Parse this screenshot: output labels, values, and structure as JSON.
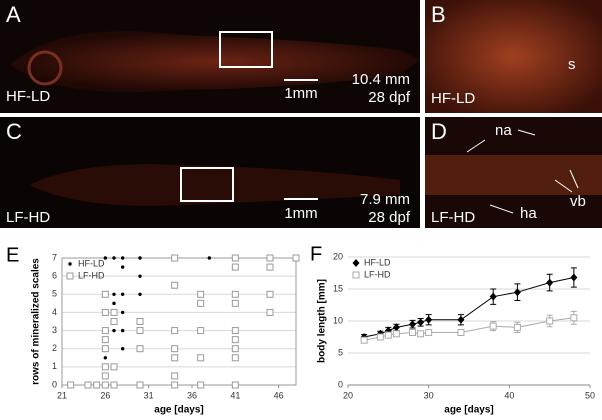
{
  "panels": [
    {
      "label": "A",
      "group": "HF-LD",
      "scale": "1mm",
      "size": "10.4 mm",
      "age": "28 dpf"
    },
    {
      "label": "B",
      "group": "HF-LD",
      "marks": [
        "s"
      ]
    },
    {
      "label": "C",
      "group": "LF-HD",
      "scale": "1mm",
      "size": "7.9 mm",
      "age": "28 dpf"
    },
    {
      "label": "D",
      "group": "LF-HD",
      "marks": [
        "na",
        "vb",
        "ha"
      ]
    }
  ],
  "chart_data": [
    {
      "type": "scatter",
      "panel_label": "E",
      "xlabel": "age [days]",
      "ylabel": "rows of mineralized scales",
      "xlim": [
        21,
        48
      ],
      "xticks": [
        21,
        26,
        31,
        36,
        41,
        46
      ],
      "ylim": [
        0,
        7
      ],
      "yticks": [
        0,
        1,
        2,
        3,
        4,
        5,
        6,
        7
      ],
      "grid": true,
      "legend": "top-left",
      "series": [
        {
          "name": "HF-LD",
          "color": "#000000",
          "marker": "dot",
          "x": [
            22,
            24,
            25,
            26,
            26,
            26,
            26,
            26,
            26,
            27,
            27,
            27,
            27,
            27,
            28,
            28,
            28,
            28,
            28,
            28,
            30,
            30,
            30,
            30,
            34,
            38,
            41,
            45,
            48
          ],
          "values": [
            0,
            0,
            0,
            7,
            4,
            3,
            2.5,
            1.5,
            1,
            7,
            5,
            4.5,
            4,
            3,
            7,
            6.5,
            5,
            4,
            3,
            2,
            7,
            6,
            5,
            3,
            7,
            7,
            7,
            7,
            7
          ]
        },
        {
          "name": "LF-HD",
          "color": "#999999",
          "marker": "square",
          "x": [
            22,
            24,
            25,
            26,
            26,
            26,
            26,
            26,
            26,
            26,
            26,
            27,
            27,
            27,
            27,
            30,
            30,
            30,
            30,
            34,
            34,
            34,
            34,
            34,
            34,
            34,
            37,
            37,
            37,
            37,
            37,
            41,
            41,
            41,
            41,
            41,
            41,
            41,
            41,
            41,
            45,
            45,
            45,
            45,
            48
          ],
          "values": [
            0,
            0,
            0,
            5,
            4,
            3,
            2.5,
            2,
            1,
            0.5,
            0,
            4,
            3.5,
            1,
            0,
            3.5,
            3,
            2,
            0,
            7,
            5.5,
            3,
            2,
            1.5,
            0.5,
            0,
            5,
            4.5,
            3,
            1.5,
            0,
            7,
            6.5,
            5,
            4.5,
            3,
            2.5,
            2,
            1.5,
            0,
            7,
            6.5,
            5,
            4,
            7
          ]
        }
      ]
    },
    {
      "type": "line",
      "panel_label": "F",
      "xlabel": "age [days]",
      "ylabel": "body length [mm]",
      "xlim": [
        20,
        50
      ],
      "xticks": [
        20,
        30,
        40,
        50
      ],
      "ylim": [
        0,
        20
      ],
      "yticks": [
        0,
        5,
        10,
        15,
        20
      ],
      "grid": true,
      "legend": "top-left",
      "series": [
        {
          "name": "HF-LD",
          "color": "#000000",
          "marker": "diamond",
          "x": [
            22,
            24,
            25,
            26,
            28,
            29,
            30,
            34,
            38,
            41,
            45,
            48
          ],
          "values": [
            7.5,
            8,
            8.5,
            9,
            9.5,
            9.8,
            10.2,
            10.2,
            13.8,
            14.5,
            16,
            16.8
          ],
          "errors": [
            0.4,
            0.4,
            0.5,
            0.5,
            0.6,
            0.6,
            0.8,
            0.8,
            1.2,
            1.3,
            1.3,
            1.5
          ]
        },
        {
          "name": "LF-HD",
          "color": "#aaaaaa",
          "marker": "square",
          "x": [
            22,
            24,
            25,
            26,
            28,
            29,
            30,
            34,
            38,
            41,
            45,
            48
          ],
          "values": [
            7,
            7.5,
            7.8,
            8,
            8.2,
            8,
            8.2,
            8.2,
            9.2,
            9,
            10,
            10.5
          ],
          "errors": [
            0.3,
            0.3,
            0.4,
            0.4,
            0.4,
            0.4,
            0.4,
            0.4,
            0.7,
            0.8,
            0.9,
            1
          ]
        }
      ]
    }
  ]
}
